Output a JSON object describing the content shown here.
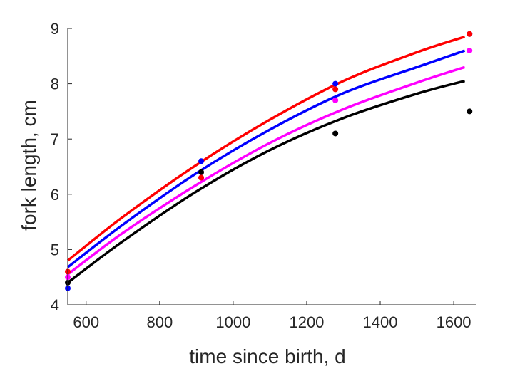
{
  "chart_data": {
    "type": "scatter",
    "title": "",
    "xlabel": "time since birth, d",
    "ylabel": "fork length, cm",
    "xlim": [
      550,
      1660
    ],
    "ylim": [
      4,
      9
    ],
    "xticks": [
      600,
      800,
      1000,
      1200,
      1400,
      1600
    ],
    "yticks": [
      4,
      5,
      6,
      7,
      8,
      9
    ],
    "grid": false,
    "legend": "none",
    "series": [
      {
        "color": "#ff0000",
        "points": [
          [
            550,
            4.6
          ],
          [
            913,
            6.3
          ],
          [
            1278,
            7.9
          ],
          [
            1643,
            8.9
          ]
        ],
        "curve": {
          "x": [
            550,
            700,
            900,
            1100,
            1300,
            1500,
            1630
          ],
          "y": [
            4.8,
            5.59,
            6.53,
            7.35,
            8.05,
            8.57,
            8.85
          ]
        }
      },
      {
        "color": "#0000ff",
        "points": [
          [
            550,
            4.3
          ],
          [
            913,
            6.6
          ],
          [
            1278,
            8.0
          ],
          [
            1643,
            8.9
          ]
        ],
        "curve": {
          "x": [
            550,
            700,
            900,
            1100,
            1300,
            1500,
            1630
          ],
          "y": [
            4.68,
            5.45,
            6.38,
            7.17,
            7.83,
            8.3,
            8.6
          ]
        }
      },
      {
        "color": "#ff00ff",
        "points": [
          [
            550,
            4.5
          ],
          [
            913,
            6.3
          ],
          [
            1278,
            7.7
          ],
          [
            1643,
            8.6
          ]
        ],
        "curve": {
          "x": [
            550,
            700,
            900,
            1100,
            1300,
            1500,
            1630
          ],
          "y": [
            4.55,
            5.3,
            6.17,
            6.93,
            7.54,
            8.02,
            8.3
          ]
        }
      },
      {
        "color": "#000000",
        "points": [
          [
            550,
            4.4
          ],
          [
            913,
            6.4
          ],
          [
            1278,
            7.1
          ],
          [
            1643,
            7.5
          ]
        ],
        "curve": {
          "x": [
            550,
            700,
            900,
            1100,
            1300,
            1500,
            1630
          ],
          "y": [
            4.4,
            5.15,
            6.05,
            6.8,
            7.38,
            7.82,
            8.05
          ]
        }
      }
    ]
  }
}
